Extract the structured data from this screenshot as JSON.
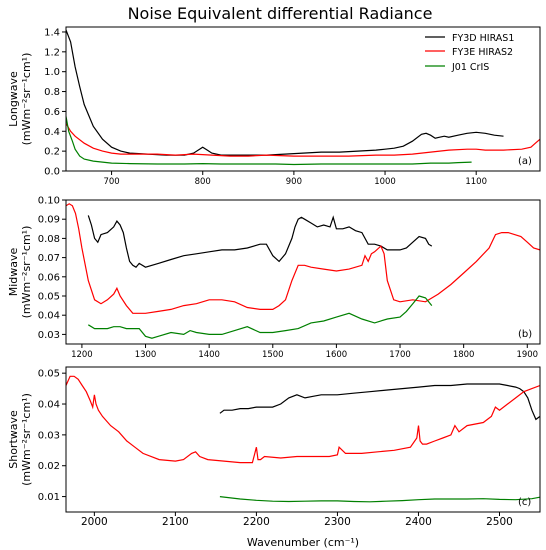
{
  "chart_data": {
    "title": "Noise Equivalent differential Radiance",
    "xlabel": "Wavenumber (cm⁻¹)",
    "legend": {
      "placement": "top-right",
      "entries": [
        {
          "name": "FY3D HIRAS1",
          "color": "#000000"
        },
        {
          "name": "FY3E HIRAS2",
          "color": "#ff0000"
        },
        {
          "name": "J01 CrIS",
          "color": "#008000"
        }
      ]
    },
    "panels": [
      {
        "type": "line",
        "ylabel_line1": "Longwave",
        "ylabel_line2": "(mWm⁻²sr⁻¹cm¹)",
        "annotation": "(a)",
        "xlim": [
          650,
          1170
        ],
        "ylim": [
          0,
          1.45
        ],
        "xticks": [
          700,
          800,
          900,
          1000,
          1100
        ],
        "yticks": [
          0.0,
          0.2,
          0.4,
          0.6,
          0.8,
          1.0,
          1.2,
          1.4
        ],
        "ytick_labels": [
          "0.0",
          "0.2",
          "0.4",
          "0.6",
          "0.8",
          "1.0",
          "1.2",
          "1.4"
        ],
        "series": [
          {
            "name": "FY3D HIRAS1",
            "color": "#000000",
            "x": [
              650,
              655,
              660,
              665,
              670,
              680,
              690,
              700,
              710,
              720,
              740,
              760,
              780,
              790,
              800,
              805,
              810,
              820,
              830,
              850,
              870,
              890,
              910,
              930,
              950,
              970,
              990,
              1000,
              1010,
              1020,
              1030,
              1040,
              1045,
              1050,
              1055,
              1060,
              1065,
              1070,
              1080,
              1090,
              1100,
              1110,
              1120,
              1130
            ],
            "y": [
              1.42,
              1.3,
              1.05,
              0.85,
              0.67,
              0.45,
              0.32,
              0.24,
              0.2,
              0.18,
              0.17,
              0.16,
              0.16,
              0.18,
              0.24,
              0.21,
              0.18,
              0.16,
              0.16,
              0.16,
              0.16,
              0.17,
              0.18,
              0.19,
              0.19,
              0.2,
              0.21,
              0.22,
              0.23,
              0.25,
              0.3,
              0.37,
              0.38,
              0.36,
              0.33,
              0.34,
              0.35,
              0.34,
              0.36,
              0.38,
              0.39,
              0.38,
              0.36,
              0.35
            ]
          },
          {
            "name": "FY3E HIRAS2",
            "color": "#ff0000",
            "x": [
              650,
              655,
              660,
              670,
              680,
              690,
              700,
              710,
              730,
              750,
              770,
              790,
              810,
              830,
              850,
              870,
              900,
              930,
              960,
              990,
              1010,
              1030,
              1050,
              1070,
              1090,
              1100,
              1110,
              1130,
              1150,
              1160,
              1165,
              1170
            ],
            "y": [
              0.48,
              0.4,
              0.35,
              0.28,
              0.23,
              0.2,
              0.18,
              0.17,
              0.17,
              0.17,
              0.16,
              0.17,
              0.16,
              0.15,
              0.15,
              0.16,
              0.15,
              0.15,
              0.15,
              0.16,
              0.16,
              0.17,
              0.19,
              0.21,
              0.22,
              0.22,
              0.21,
              0.21,
              0.22,
              0.24,
              0.28,
              0.32
            ]
          },
          {
            "name": "J01 CrIS",
            "color": "#008000",
            "x": [
              650,
              653,
              657,
              660,
              665,
              670,
              680,
              690,
              700,
              720,
              750,
              780,
              800,
              820,
              850,
              880,
              900,
              930,
              960,
              1000,
              1030,
              1050,
              1070,
              1080,
              1095
            ],
            "y": [
              0.55,
              0.4,
              0.3,
              0.22,
              0.15,
              0.12,
              0.1,
              0.09,
              0.08,
              0.075,
              0.07,
              0.07,
              0.075,
              0.07,
              0.07,
              0.07,
              0.065,
              0.07,
              0.07,
              0.07,
              0.07,
              0.08,
              0.08,
              0.085,
              0.09
            ]
          }
        ]
      },
      {
        "type": "line",
        "ylabel_line1": "Midwave",
        "ylabel_line2": "(mWm⁻²sr⁻¹cm¹)",
        "annotation": "(b)",
        "xlim": [
          1175,
          1920
        ],
        "ylim": [
          0.025,
          0.1
        ],
        "xticks": [
          1200,
          1300,
          1400,
          1500,
          1600,
          1700,
          1800,
          1900
        ],
        "yticks": [
          0.03,
          0.04,
          0.05,
          0.06,
          0.07,
          0.08,
          0.09,
          0.1
        ],
        "ytick_labels": [
          "0.03",
          "0.04",
          "0.05",
          "0.06",
          "0.07",
          "0.08",
          "0.09",
          "0.10"
        ],
        "series": [
          {
            "name": "FY3D HIRAS1",
            "color": "#000000",
            "x": [
              1210,
              1215,
              1220,
              1225,
              1230,
              1240,
              1250,
              1255,
              1260,
              1265,
              1270,
              1275,
              1280,
              1285,
              1290,
              1300,
              1320,
              1340,
              1360,
              1380,
              1400,
              1420,
              1440,
              1460,
              1480,
              1490,
              1500,
              1510,
              1520,
              1530,
              1535,
              1540,
              1545,
              1550,
              1560,
              1570,
              1580,
              1590,
              1595,
              1600,
              1610,
              1620,
              1630,
              1640,
              1650,
              1660,
              1670,
              1680,
              1690,
              1700,
              1710,
              1720,
              1730,
              1740,
              1745,
              1750
            ],
            "y": [
              0.092,
              0.087,
              0.08,
              0.078,
              0.082,
              0.083,
              0.086,
              0.089,
              0.087,
              0.083,
              0.075,
              0.068,
              0.066,
              0.065,
              0.067,
              0.065,
              0.067,
              0.069,
              0.071,
              0.072,
              0.073,
              0.074,
              0.074,
              0.075,
              0.077,
              0.077,
              0.071,
              0.068,
              0.072,
              0.08,
              0.086,
              0.09,
              0.091,
              0.09,
              0.088,
              0.086,
              0.087,
              0.086,
              0.091,
              0.085,
              0.085,
              0.086,
              0.084,
              0.083,
              0.077,
              0.077,
              0.076,
              0.074,
              0.074,
              0.074,
              0.075,
              0.078,
              0.081,
              0.08,
              0.077,
              0.076
            ]
          },
          {
            "name": "FY3E HIRAS2",
            "color": "#ff0000",
            "x": [
              1175,
              1180,
              1185,
              1190,
              1195,
              1200,
              1210,
              1220,
              1230,
              1240,
              1250,
              1255,
              1260,
              1270,
              1280,
              1300,
              1320,
              1340,
              1360,
              1380,
              1400,
              1420,
              1440,
              1460,
              1480,
              1500,
              1510,
              1520,
              1530,
              1540,
              1550,
              1560,
              1580,
              1600,
              1620,
              1640,
              1645,
              1650,
              1655,
              1660,
              1670,
              1675,
              1680,
              1690,
              1700,
              1720,
              1740,
              1760,
              1780,
              1800,
              1820,
              1840,
              1850,
              1860,
              1870,
              1880,
              1890,
              1900,
              1910,
              1920
            ],
            "y": [
              0.097,
              0.098,
              0.097,
              0.093,
              0.085,
              0.075,
              0.058,
              0.048,
              0.046,
              0.048,
              0.051,
              0.054,
              0.05,
              0.045,
              0.041,
              0.041,
              0.042,
              0.043,
              0.045,
              0.046,
              0.048,
              0.048,
              0.047,
              0.044,
              0.043,
              0.043,
              0.045,
              0.048,
              0.058,
              0.066,
              0.066,
              0.065,
              0.064,
              0.063,
              0.064,
              0.066,
              0.071,
              0.068,
              0.072,
              0.073,
              0.076,
              0.072,
              0.058,
              0.048,
              0.047,
              0.048,
              0.047,
              0.051,
              0.056,
              0.062,
              0.068,
              0.075,
              0.082,
              0.083,
              0.083,
              0.082,
              0.081,
              0.078,
              0.075,
              0.074
            ]
          },
          {
            "name": "J01 CrIS",
            "color": "#008000",
            "x": [
              1210,
              1220,
              1230,
              1240,
              1250,
              1260,
              1270,
              1280,
              1290,
              1300,
              1310,
              1320,
              1340,
              1360,
              1370,
              1380,
              1400,
              1420,
              1440,
              1460,
              1480,
              1500,
              1520,
              1540,
              1560,
              1580,
              1600,
              1620,
              1640,
              1660,
              1680,
              1700,
              1710,
              1720,
              1730,
              1740,
              1750
            ],
            "y": [
              0.035,
              0.033,
              0.033,
              0.033,
              0.034,
              0.034,
              0.033,
              0.033,
              0.033,
              0.029,
              0.028,
              0.029,
              0.031,
              0.03,
              0.032,
              0.031,
              0.03,
              0.03,
              0.032,
              0.034,
              0.031,
              0.031,
              0.032,
              0.033,
              0.036,
              0.037,
              0.039,
              0.041,
              0.038,
              0.036,
              0.038,
              0.039,
              0.042,
              0.046,
              0.05,
              0.049,
              0.045
            ]
          }
        ]
      },
      {
        "type": "line",
        "ylabel_line1": "Shortwave",
        "ylabel_line2": "(mWm⁻²sr⁻¹cm¹)",
        "annotation": "(c)",
        "xlim": [
          1965,
          2550
        ],
        "ylim": [
          0.005,
          0.052
        ],
        "xticks": [
          2000,
          2100,
          2200,
          2300,
          2400,
          2500
        ],
        "yticks": [
          0.01,
          0.02,
          0.03,
          0.04,
          0.05
        ],
        "ytick_labels": [
          "0.01",
          "0.02",
          "0.03",
          "0.04",
          "0.05"
        ],
        "series": [
          {
            "name": "FY3D HIRAS1",
            "color": "#000000",
            "x": [
              2155,
              2160,
              2170,
              2180,
              2190,
              2200,
              2210,
              2220,
              2230,
              2240,
              2250,
              2260,
              2270,
              2280,
              2300,
              2320,
              2340,
              2360,
              2380,
              2400,
              2420,
              2440,
              2460,
              2480,
              2500,
              2510,
              2520,
              2525,
              2530,
              2535,
              2540,
              2545,
              2550
            ],
            "y": [
              0.037,
              0.038,
              0.038,
              0.0385,
              0.0385,
              0.039,
              0.039,
              0.039,
              0.04,
              0.042,
              0.043,
              0.042,
              0.0425,
              0.043,
              0.043,
              0.0435,
              0.044,
              0.0445,
              0.045,
              0.0455,
              0.046,
              0.046,
              0.0465,
              0.0465,
              0.0465,
              0.046,
              0.0455,
              0.045,
              0.044,
              0.042,
              0.038,
              0.035,
              0.036
            ]
          },
          {
            "name": "FY3E HIRAS2",
            "color": "#ff0000",
            "x": [
              1965,
              1970,
              1975,
              1980,
              1985,
              1990,
              1995,
              1998,
              2000,
              2002,
              2005,
              2010,
              2020,
              2030,
              2040,
              2050,
              2060,
              2080,
              2100,
              2110,
              2120,
              2125,
              2130,
              2140,
              2160,
              2180,
              2195,
              2200,
              2202,
              2205,
              2210,
              2230,
              2250,
              2270,
              2290,
              2300,
              2302,
              2310,
              2330,
              2350,
              2370,
              2390,
              2398,
              2400,
              2402,
              2405,
              2410,
              2420,
              2430,
              2440,
              2445,
              2450,
              2460,
              2480,
              2490,
              2495,
              2500,
              2510,
              2520,
              2530,
              2540,
              2550
            ],
            "y": [
              0.046,
              0.049,
              0.049,
              0.048,
              0.046,
              0.044,
              0.041,
              0.039,
              0.043,
              0.04,
              0.038,
              0.036,
              0.033,
              0.031,
              0.028,
              0.026,
              0.024,
              0.022,
              0.0215,
              0.022,
              0.024,
              0.0245,
              0.023,
              0.022,
              0.0215,
              0.021,
              0.021,
              0.026,
              0.022,
              0.022,
              0.023,
              0.0225,
              0.023,
              0.023,
              0.023,
              0.0235,
              0.026,
              0.024,
              0.024,
              0.0245,
              0.025,
              0.026,
              0.029,
              0.033,
              0.028,
              0.027,
              0.027,
              0.028,
              0.029,
              0.03,
              0.033,
              0.031,
              0.033,
              0.034,
              0.036,
              0.039,
              0.038,
              0.04,
              0.042,
              0.044,
              0.045,
              0.046
            ]
          },
          {
            "name": "J01 CrIS",
            "color": "#008000",
            "x": [
              2155,
              2180,
              2200,
              2220,
              2240,
              2260,
              2280,
              2300,
              2320,
              2340,
              2360,
              2380,
              2400,
              2420,
              2440,
              2460,
              2480,
              2500,
              2520,
              2540,
              2550
            ],
            "y": [
              0.01,
              0.0092,
              0.0088,
              0.0085,
              0.0084,
              0.0085,
              0.0086,
              0.0086,
              0.0084,
              0.0083,
              0.0085,
              0.0087,
              0.009,
              0.0092,
              0.0092,
              0.0092,
              0.0093,
              0.0091,
              0.009,
              0.0093,
              0.0098
            ]
          }
        ]
      }
    ]
  }
}
